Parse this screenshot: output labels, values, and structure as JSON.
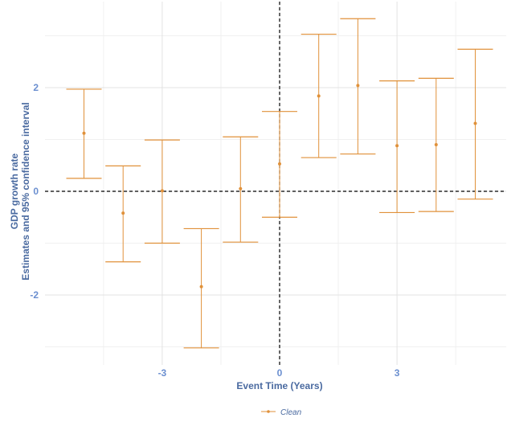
{
  "chart_data": {
    "type": "errorbar",
    "xlabel": "Event Time (Years)",
    "ylabel_line1": "GDP growth rate",
    "ylabel_line2": "Estimates and 95% confidence interval",
    "xlim": [
      -6.0,
      6.0
    ],
    "ylim": [
      -3.3,
      3.7
    ],
    "x_ticks": [
      -3,
      0,
      3
    ],
    "y_ticks": [
      -2,
      0,
      2
    ],
    "x_minor_grid": [
      -4.5,
      -1.5,
      1.5,
      4.5
    ],
    "y_minor_grid": [
      -3,
      -1,
      1,
      3
    ],
    "reference_lines": {
      "x": 0,
      "y": 0
    },
    "grid": true,
    "legend_position": "bottom",
    "series": [
      {
        "name": "Clean",
        "color": "#e0913a",
        "points": [
          {
            "x": -5,
            "y": 1.12,
            "lo": 0.25,
            "hi": 1.97
          },
          {
            "x": -4,
            "y": -0.42,
            "lo": -1.36,
            "hi": 0.49
          },
          {
            "x": -3,
            "y": 0.01,
            "lo": -1.0,
            "hi": 0.99
          },
          {
            "x": -2,
            "y": -1.84,
            "lo": -3.02,
            "hi": -0.72
          },
          {
            "x": -1,
            "y": 0.05,
            "lo": -0.98,
            "hi": 1.05
          },
          {
            "x": 0,
            "y": 0.53,
            "lo": -0.5,
            "hi": 1.54
          },
          {
            "x": 1,
            "y": 1.84,
            "lo": 0.65,
            "hi": 3.03
          },
          {
            "x": 2,
            "y": 2.04,
            "lo": 0.72,
            "hi": 3.33
          },
          {
            "x": 3,
            "y": 0.88,
            "lo": -0.41,
            "hi": 2.13
          },
          {
            "x": 4,
            "y": 0.9,
            "lo": -0.39,
            "hi": 2.18
          },
          {
            "x": 5,
            "y": 1.31,
            "lo": -0.15,
            "hi": 2.74
          }
        ]
      }
    ]
  }
}
